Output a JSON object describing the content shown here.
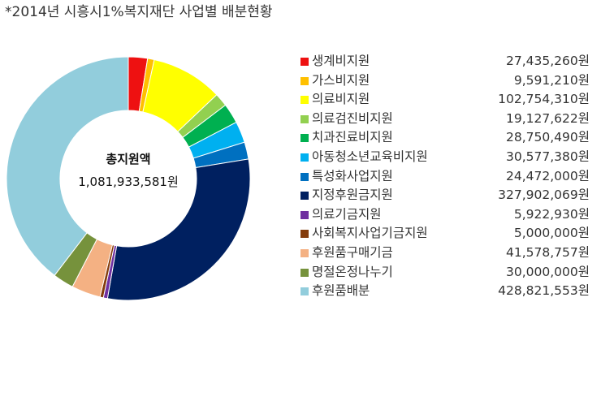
{
  "title": "*2014년 시흥시1%복지재단 사업별 배분현황",
  "center": {
    "title": "총지원액",
    "value": "1,081,933,581원"
  },
  "chart_data": {
    "type": "pie",
    "donut": true,
    "title": "*2014년 시흥시1%복지재단 사업별 배분현황",
    "total_label": "총지원액",
    "total": 1081933581,
    "legend_position": "right",
    "categories": [
      "생계비지원",
      "가스비지원",
      "의료비지원",
      "의료검진비지원",
      "치과진료비지원",
      "아동청소년교육비지원",
      "특성화사업지원",
      "지정후원금지원",
      "의료기금지원",
      "사회복지사업기금지원",
      "후원품구매기금",
      "명절온정나누기",
      "후원품배분"
    ],
    "values": [
      27435260,
      9591210,
      102754310,
      19127622,
      28750490,
      30577380,
      24472000,
      327902069,
      5922930,
      5000000,
      41578757,
      30000000,
      428821553
    ],
    "value_labels": [
      "27,435,260원",
      "9,591,210원",
      "102,754,310원",
      "19,127,622원",
      "28,750,490원",
      "30,577,380원",
      "24,472,000원",
      "327,902,069원",
      "5,922,930원",
      "5,000,000원",
      "41,578,757원",
      "30,000,000원",
      "428,821,553원"
    ],
    "colors": [
      "#ee1111",
      "#ffc000",
      "#ffff00",
      "#92d050",
      "#00b050",
      "#00b0f0",
      "#0070c0",
      "#002060",
      "#7030a0",
      "#843c0c",
      "#f4b183",
      "#76923c",
      "#92cddc"
    ]
  }
}
